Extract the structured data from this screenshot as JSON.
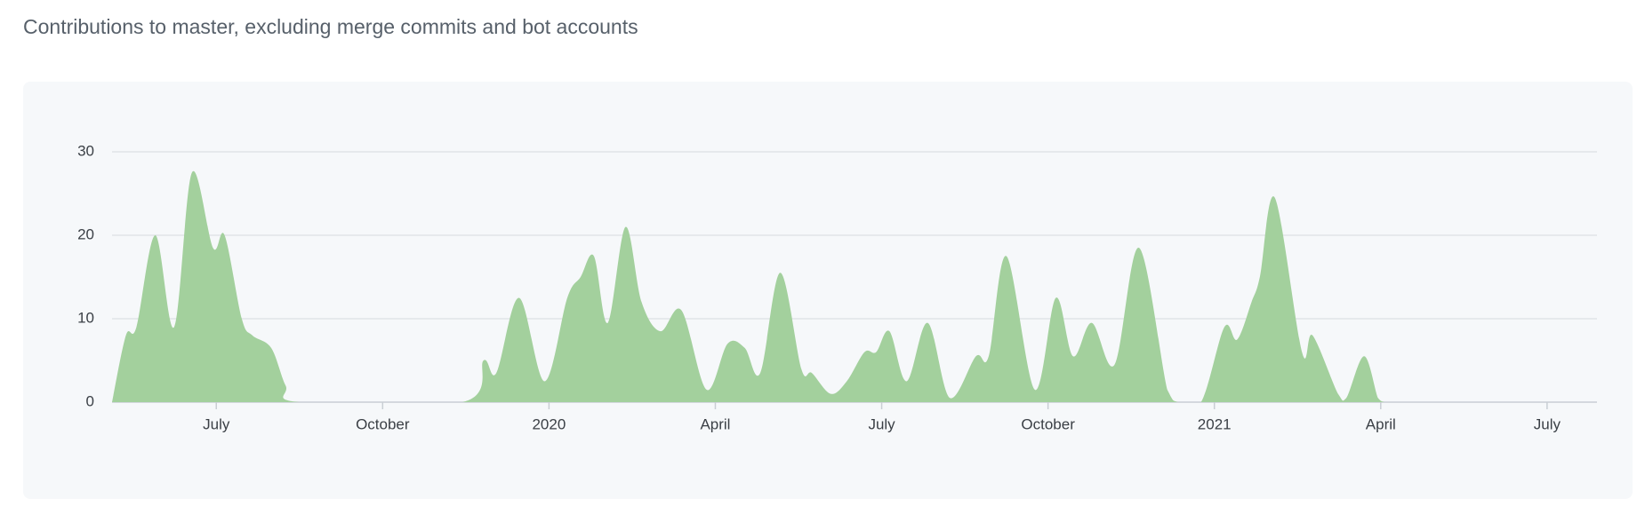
{
  "chart_data": {
    "type": "area",
    "title": "Contributions to master, excluding merge commits and bot accounts",
    "x": [
      5.12,
      5.37,
      5.56,
      5.9,
      6.24,
      6.56,
      6.94,
      7.15,
      7.46,
      7.65,
      7.99,
      8.25,
      8.5,
      11.44,
      11.82,
      12.05,
      12.46,
      12.92,
      13.33,
      13.57,
      13.81,
      14.06,
      14.38,
      14.67,
      15.01,
      15.39,
      15.84,
      16.22,
      16.53,
      16.81,
      17.17,
      17.55,
      17.74,
      18.08,
      18.37,
      18.69,
      18.9,
      19.14,
      19.45,
      19.83,
      20.23,
      20.7,
      20.93,
      21.25,
      21.76,
      22.14,
      22.45,
      22.79,
      23.2,
      23.64,
      24.15,
      24.34,
      24.76,
      25.18,
      25.41,
      25.67,
      25.82,
      26.09,
      26.58,
      26.77,
      27.23,
      27.38,
      27.7,
      27.95,
      28.06
    ],
    "values": [
      0,
      8,
      9,
      20,
      9,
      27.5,
      18.5,
      20,
      10,
      8,
      6.5,
      2,
      0,
      0,
      5,
      3.5,
      12.5,
      2.5,
      12.5,
      15,
      17.5,
      9.5,
      21,
      12,
      8.5,
      11,
      1.5,
      7,
      6.5,
      3.5,
      15.5,
      4,
      3.5,
      1,
      2.5,
      6,
      6,
      8.5,
      2.5,
      9.5,
      0.5,
      5.5,
      5.5,
      17.5,
      1.5,
      12.5,
      5.5,
      9.5,
      4.5,
      18.5,
      1.5,
      0,
      0,
      9,
      7.5,
      12,
      15,
      24.5,
      6,
      8,
      1,
      0.5,
      5.5,
      0.5,
      0
    ],
    "color": "#a3d09d",
    "xlim": [
      5.12,
      31.9
    ],
    "xticks": [
      {
        "value": 7,
        "label": "July"
      },
      {
        "value": 10,
        "label": "October"
      },
      {
        "value": 13,
        "label": "2020"
      },
      {
        "value": 16,
        "label": "April"
      },
      {
        "value": 19,
        "label": "July"
      },
      {
        "value": 22,
        "label": "October"
      },
      {
        "value": 25,
        "label": "2021"
      },
      {
        "value": 28,
        "label": "April"
      },
      {
        "value": 31,
        "label": "July"
      }
    ],
    "ylim": [
      0,
      30
    ],
    "yticks": [
      0,
      10,
      20,
      30
    ],
    "grid": true
  }
}
